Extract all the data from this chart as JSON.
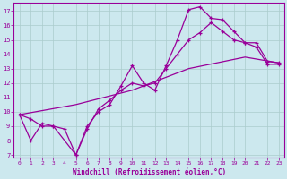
{
  "title": "",
  "xlabel": "Windchill (Refroidissement éolien,°C)",
  "bg_color": "#cce8ee",
  "grid_color": "#aacccc",
  "line_color": "#990099",
  "xlim": [
    -0.5,
    23.5
  ],
  "ylim": [
    6.8,
    17.6
  ],
  "yticks": [
    7,
    8,
    9,
    10,
    11,
    12,
    13,
    14,
    15,
    16,
    17
  ],
  "xticks": [
    0,
    1,
    2,
    3,
    4,
    5,
    6,
    7,
    8,
    9,
    10,
    11,
    12,
    13,
    14,
    15,
    16,
    17,
    18,
    19,
    20,
    21,
    22,
    23
  ],
  "curve1_x": [
    0,
    1,
    2,
    3,
    4,
    5,
    6,
    7,
    8,
    9,
    10,
    11,
    12,
    13,
    14,
    15,
    16,
    17,
    18,
    19,
    20,
    21,
    22,
    23
  ],
  "curve1_y": [
    9.8,
    8.0,
    9.2,
    9.0,
    8.8,
    7.0,
    8.8,
    10.2,
    10.8,
    11.5,
    12.0,
    11.8,
    12.0,
    13.0,
    14.0,
    15.0,
    15.5,
    16.2,
    15.6,
    15.0,
    14.8,
    14.5,
    13.3,
    13.3
  ],
  "curve2_x": [
    0,
    1,
    2,
    3,
    5,
    6,
    7,
    8,
    9,
    10,
    11,
    12,
    13,
    14,
    15,
    16,
    17,
    18,
    19,
    20,
    21,
    22,
    23
  ],
  "curve2_y": [
    9.8,
    9.5,
    9.0,
    9.0,
    7.0,
    9.0,
    10.0,
    10.5,
    11.8,
    13.2,
    12.0,
    11.5,
    13.2,
    15.0,
    17.1,
    17.3,
    16.5,
    16.4,
    15.6,
    14.8,
    14.8,
    13.5,
    13.4
  ],
  "curve3_x": [
    0,
    5,
    10,
    15,
    20,
    23
  ],
  "curve3_y": [
    9.8,
    10.5,
    11.5,
    13.0,
    13.8,
    13.4
  ]
}
